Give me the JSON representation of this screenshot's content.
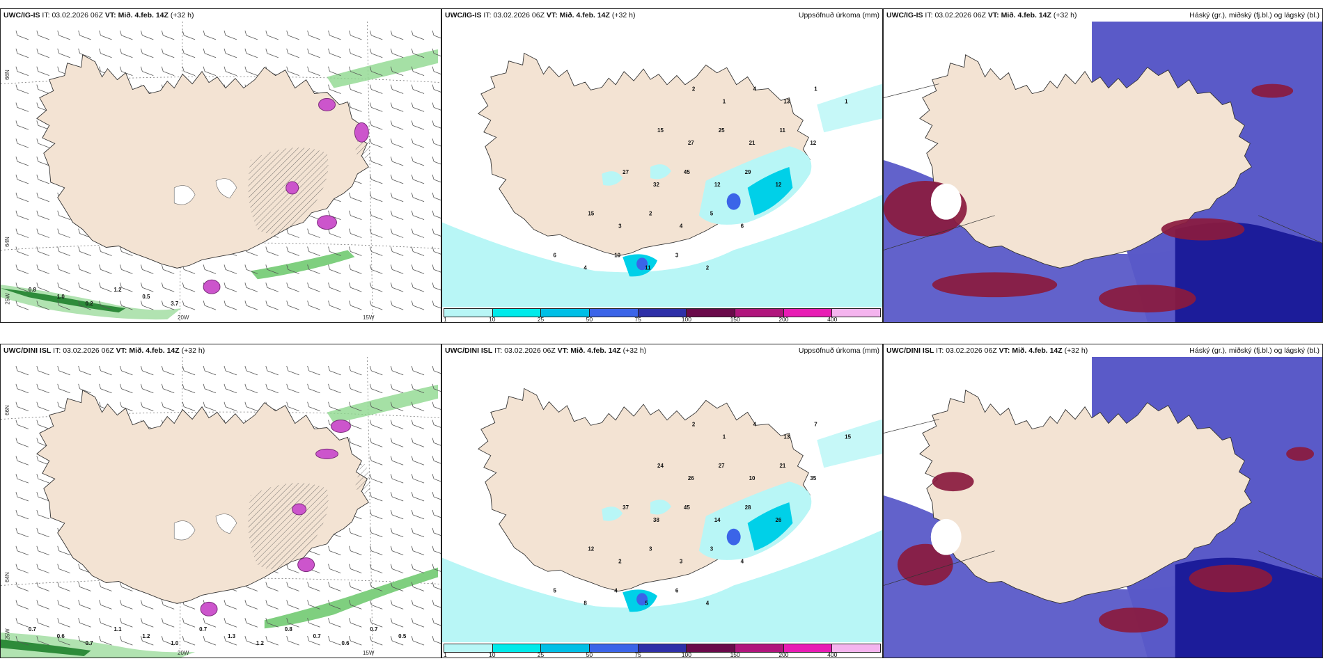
{
  "panels": {
    "p1": {
      "model": "UWC/IG-IS",
      "it_label": "IT:",
      "it": "03.02.2026 06Z",
      "vt_label": "VT:",
      "vt": "Mið. 4.feb. 14Z",
      "lead": "(+32 h)",
      "right": ""
    },
    "p2": {
      "model": "UWC/IG-IS",
      "it_label": "IT:",
      "it": "03.02.2026 06Z",
      "vt_label": "VT:",
      "vt": "Mið. 4.feb. 14Z",
      "lead": "(+32 h)",
      "right": "Uppsöfnuð úrkoma (mm)"
    },
    "p3": {
      "model": "UWC/IG-IS",
      "it_label": "IT:",
      "it": "03.02.2026 06Z",
      "vt_label": "VT:",
      "vt": "Mið. 4.feb. 14Z",
      "lead": "(+32 h)",
      "right": "Háský (gr.), miðský (fj.bl.) og lágský (bl.)"
    },
    "p4": {
      "model": "UWC/DINI ISL",
      "it_label": "IT:",
      "it": "03.02.2026 06Z",
      "vt_label": "VT:",
      "vt": "Mið. 4.feb. 14Z",
      "lead": "(+32 h)",
      "right": ""
    },
    "p5": {
      "model": "UWC/DINI ISL",
      "it_label": "IT:",
      "it": "03.02.2026 06Z",
      "vt_label": "VT:",
      "vt": "Mið. 4.feb. 14Z",
      "lead": "(+32 h)",
      "right": "Uppsöfnuð úrkoma (mm)"
    },
    "p6": {
      "model": "UWC/DINI ISL",
      "it_label": "IT:",
      "it": "03.02.2026 06Z",
      "vt_label": "VT:",
      "vt": "Mið. 4.feb. 14Z",
      "lead": "(+32 h)",
      "right": "Háský (gr.), miðský (fj.bl.) og lágský (bl.)"
    }
  },
  "axis_labels": {
    "lat66": "66N",
    "lat64": "64N",
    "lon20": "20W",
    "lon15": "15W",
    "lon25": "25W"
  },
  "colorbar": {
    "labels": [
      "1",
      "10",
      "25",
      "50",
      "75",
      "100",
      "150",
      "200",
      "400"
    ],
    "colors": [
      "#b8f6f6",
      "#00eaea",
      "#00bfe6",
      "#3b64e8",
      "#2e2fa8",
      "#6a0a4a",
      "#b0157c",
      "#e81cb4",
      "#f4b4ee"
    ]
  },
  "colors": {
    "land": "#f3e3d3",
    "precip_light": "#b8f6f6",
    "precip_mid": "#00d0e8",
    "cloud_high": "#8a1a3e",
    "cloud_mid": "#5a5ac8",
    "cloud_low": "#1c1c9a",
    "green": "#2e8b3a",
    "magenta": "#cc44cc"
  },
  "precip_values_top": [
    "2",
    "1",
    "4",
    "13",
    "1",
    "1",
    "15",
    "27",
    "25",
    "21",
    "11",
    "12",
    "27",
    "32",
    "45",
    "12",
    "29",
    "12",
    "15",
    "3",
    "2",
    "4",
    "5",
    "6",
    "6",
    "4",
    "10",
    "11",
    "3",
    "2"
  ],
  "precip_values_bottom": [
    "2",
    "1",
    "4",
    "13",
    "7",
    "15",
    "24",
    "26",
    "27",
    "10",
    "21",
    "35",
    "37",
    "38",
    "45",
    "14",
    "28",
    "26",
    "12",
    "2",
    "3",
    "3",
    "3",
    "4",
    "5",
    "8",
    "4",
    "5",
    "6",
    "4"
  ],
  "wind_values_top": [
    "0.8",
    "1.0",
    "0.2",
    "1.2",
    "0.5",
    "3.7"
  ],
  "wind_values_bottom": [
    "0.7",
    "0.6",
    "0.7",
    "1.1",
    "1.2",
    "1.0",
    "0.7",
    "1.3",
    "1.2",
    "0.8",
    "0.7",
    "0.6",
    "0.7",
    "0.5"
  ]
}
